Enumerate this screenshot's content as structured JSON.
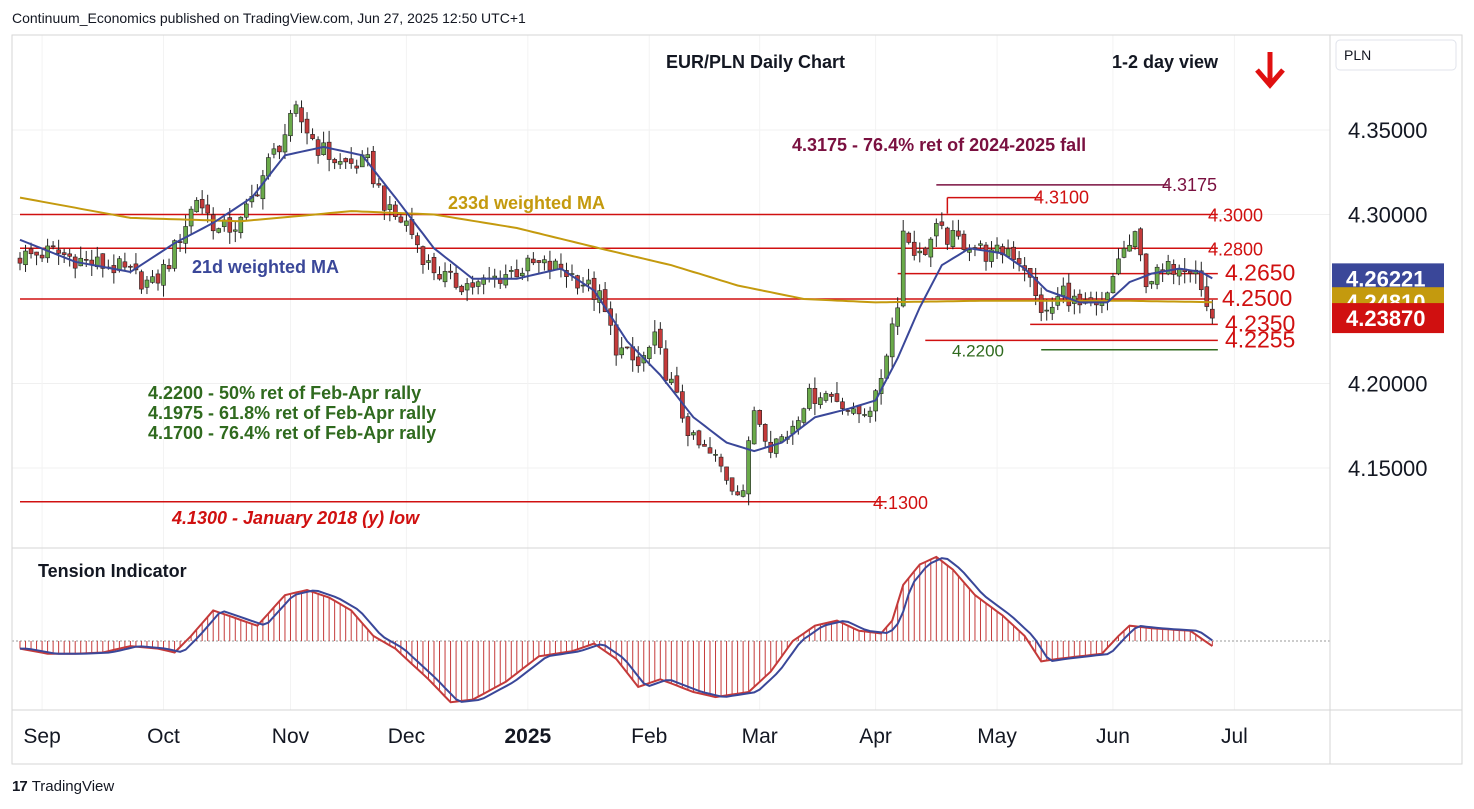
{
  "header": "Continuum_Economics published on TradingView.com, Jun 27, 2025 12:50 UTC+1",
  "brand": "TradingView",
  "currency_label": "PLN",
  "colors": {
    "up": "#6aaa4a",
    "down": "#c43a3a",
    "wma21": "#3a4799",
    "wma233": "#c49a0e",
    "level": "#d01010",
    "green_text": "#2f6a1e",
    "purple": "#7a1040"
  },
  "chart_data": {
    "type": "candlestick",
    "title": "EUR/PLN Daily Chart",
    "view": "1-2 day view",
    "view_direction": "down",
    "ylim": [
      4.105,
      4.395
    ],
    "y_ticks": [
      4.35,
      4.3,
      4.2,
      4.15
    ],
    "y_tick_labels": [
      "4.35000",
      "4.30000",
      "4.20000",
      "4.15000"
    ],
    "x_ticks": [
      {
        "label": "Sep",
        "day": 4
      },
      {
        "label": "Oct",
        "day": 26
      },
      {
        "label": "Nov",
        "day": 49
      },
      {
        "label": "Dec",
        "day": 70
      },
      {
        "label": "2025",
        "day": 92
      },
      {
        "label": "Feb",
        "day": 114
      },
      {
        "label": "Mar",
        "day": 134
      },
      {
        "label": "Apr",
        "day": 155
      },
      {
        "label": "May",
        "day": 177
      },
      {
        "label": "Jun",
        "day": 198
      },
      {
        "label": "Jul",
        "day": 220
      }
    ],
    "price_badges": [
      {
        "label": "4.26221",
        "value": 4.26221,
        "color": "#3a4799"
      },
      {
        "label": "4.24810",
        "value": 4.2481,
        "color": "#c49a0e"
      },
      {
        "label": "4.23870",
        "value": 4.2387,
        "color": "#d01010"
      }
    ],
    "levels": [
      {
        "label": "4.3000",
        "value": 4.3,
        "from_day": 0,
        "to_day": 217
      },
      {
        "label": "4.2800",
        "value": 4.28,
        "from_day": 0,
        "to_day": 217
      },
      {
        "label": "4.2650",
        "value": 4.265,
        "from_day": 159,
        "to_day": 217
      },
      {
        "label": "4.2500",
        "value": 4.25,
        "from_day": 0,
        "to_day": 217
      },
      {
        "label": "4.2350",
        "value": 4.235,
        "from_day": 183,
        "to_day": 217
      },
      {
        "label": "4.2255",
        "value": 4.2255,
        "from_day": 164,
        "to_day": 217
      },
      {
        "label": "4.1300",
        "value": 4.13,
        "from_day": 0,
        "to_day": 157
      }
    ],
    "level_4_3100": {
      "label": "4.3100",
      "value": 4.31,
      "from_day": 168,
      "to_day": 185
    },
    "level_4_3175": {
      "label": "4.3175",
      "value": 4.3175,
      "from_day": 166,
      "to_day": 208
    },
    "level_4_2200": {
      "label": "4.2200",
      "value": 4.22,
      "from_day": 185,
      "to_day": 217
    },
    "annotations": {
      "fib_title": "4.3175 - 76.4% ret of 2024-2025 fall",
      "wma233": "233d weighted MA",
      "wma21": "21d weighted MA",
      "ret1": "4.2200 - 50% ret of Feb-Apr rally",
      "ret2": "4.1975 - 61.8% ret of Feb-Apr rally",
      "ret3": "4.1700 - 76.4% ret of Feb-Apr rally",
      "low_note": "4.1300 - January 2018 (y) low",
      "tension": "Tension Indicator"
    },
    "close_anchors": [
      [
        0,
        4.275
      ],
      [
        6,
        4.278
      ],
      [
        12,
        4.272
      ],
      [
        18,
        4.268
      ],
      [
        24,
        4.258
      ],
      [
        27,
        4.272
      ],
      [
        32,
        4.31
      ],
      [
        36,
        4.29
      ],
      [
        40,
        4.295
      ],
      [
        45,
        4.33
      ],
      [
        50,
        4.36
      ],
      [
        54,
        4.34
      ],
      [
        58,
        4.33
      ],
      [
        63,
        4.33
      ],
      [
        67,
        4.3
      ],
      [
        70,
        4.295
      ],
      [
        74,
        4.27
      ],
      [
        78,
        4.26
      ],
      [
        83,
        4.258
      ],
      [
        88,
        4.265
      ],
      [
        93,
        4.27
      ],
      [
        98,
        4.268
      ],
      [
        102,
        4.26
      ],
      [
        105,
        4.25
      ],
      [
        108,
        4.222
      ],
      [
        112,
        4.21
      ],
      [
        115,
        4.225
      ],
      [
        119,
        4.19
      ],
      [
        122,
        4.165
      ],
      [
        126,
        4.155
      ],
      [
        129,
        4.14
      ],
      [
        131,
        4.138
      ],
      [
        133,
        4.185
      ],
      [
        136,
        4.165
      ],
      [
        139,
        4.17
      ],
      [
        142,
        4.19
      ],
      [
        145,
        4.195
      ],
      [
        149,
        4.19
      ],
      [
        151,
        4.18
      ],
      [
        153,
        4.185
      ],
      [
        155,
        4.19
      ],
      [
        157,
        4.22
      ],
      [
        159,
        4.25
      ],
      [
        160,
        4.29
      ],
      [
        163,
        4.275
      ],
      [
        166,
        4.29
      ],
      [
        169,
        4.285
      ],
      [
        172,
        4.283
      ],
      [
        176,
        4.275
      ],
      [
        179,
        4.28
      ],
      [
        182,
        4.27
      ],
      [
        184,
        4.25
      ],
      [
        186,
        4.24
      ],
      [
        189,
        4.255
      ],
      [
        192,
        4.245
      ],
      [
        195,
        4.243
      ],
      [
        197,
        4.25
      ],
      [
        199,
        4.275
      ],
      [
        202,
        4.285
      ],
      [
        204,
        4.262
      ],
      [
        207,
        4.265
      ],
      [
        210,
        4.272
      ],
      [
        213,
        4.27
      ],
      [
        214,
        4.255
      ],
      [
        215,
        4.245
      ],
      [
        216,
        4.2387
      ]
    ],
    "wma21_anchors": [
      [
        0,
        4.285
      ],
      [
        10,
        4.272
      ],
      [
        20,
        4.266
      ],
      [
        28,
        4.283
      ],
      [
        35,
        4.295
      ],
      [
        42,
        4.31
      ],
      [
        48,
        4.335
      ],
      [
        55,
        4.34
      ],
      [
        62,
        4.335
      ],
      [
        68,
        4.31
      ],
      [
        75,
        4.28
      ],
      [
        82,
        4.262
      ],
      [
        90,
        4.262
      ],
      [
        98,
        4.268
      ],
      [
        104,
        4.255
      ],
      [
        110,
        4.225
      ],
      [
        116,
        4.205
      ],
      [
        122,
        4.18
      ],
      [
        128,
        4.165
      ],
      [
        133,
        4.16
      ],
      [
        138,
        4.165
      ],
      [
        144,
        4.18
      ],
      [
        150,
        4.185
      ],
      [
        155,
        4.19
      ],
      [
        159,
        4.215
      ],
      [
        163,
        4.245
      ],
      [
        167,
        4.27
      ],
      [
        172,
        4.28
      ],
      [
        178,
        4.277
      ],
      [
        182,
        4.268
      ],
      [
        186,
        4.255
      ],
      [
        192,
        4.248
      ],
      [
        197,
        4.248
      ],
      [
        201,
        4.26
      ],
      [
        205,
        4.265
      ],
      [
        210,
        4.268
      ],
      [
        214,
        4.266
      ],
      [
        216,
        4.2622
      ]
    ],
    "wma233_anchors": [
      [
        0,
        4.31
      ],
      [
        20,
        4.298
      ],
      [
        40,
        4.296
      ],
      [
        60,
        4.302
      ],
      [
        75,
        4.3
      ],
      [
        90,
        4.292
      ],
      [
        105,
        4.28
      ],
      [
        118,
        4.27
      ],
      [
        130,
        4.258
      ],
      [
        142,
        4.25
      ],
      [
        155,
        4.248
      ],
      [
        175,
        4.249
      ],
      [
        200,
        4.249
      ],
      [
        216,
        4.2481
      ]
    ],
    "tension_anchors": [
      [
        0,
        -0.3
      ],
      [
        5,
        -0.5
      ],
      [
        10,
        -0.5
      ],
      [
        15,
        -0.45
      ],
      [
        20,
        -0.2
      ],
      [
        25,
        -0.3
      ],
      [
        28,
        -0.45
      ],
      [
        31,
        0.2
      ],
      [
        35,
        1.2
      ],
      [
        39,
        0.9
      ],
      [
        43,
        0.6
      ],
      [
        48,
        1.8
      ],
      [
        52,
        2.0
      ],
      [
        56,
        1.7
      ],
      [
        60,
        1.2
      ],
      [
        64,
        0.2
      ],
      [
        68,
        -0.3
      ],
      [
        74,
        -1.5
      ],
      [
        78,
        -2.4
      ],
      [
        82,
        -2.3
      ],
      [
        88,
        -1.6
      ],
      [
        94,
        -0.6
      ],
      [
        100,
        -0.4
      ],
      [
        104,
        -0.1
      ],
      [
        108,
        -0.7
      ],
      [
        112,
        -1.8
      ],
      [
        116,
        -1.5
      ],
      [
        122,
        -2.0
      ],
      [
        126,
        -2.2
      ],
      [
        132,
        -2.0
      ],
      [
        136,
        -1.2
      ],
      [
        140,
        0.0
      ],
      [
        144,
        0.6
      ],
      [
        148,
        0.8
      ],
      [
        152,
        0.4
      ],
      [
        156,
        0.3
      ],
      [
        158,
        0.8
      ],
      [
        160,
        2.2
      ],
      [
        163,
        3.0
      ],
      [
        166,
        3.3
      ],
      [
        169,
        2.8
      ],
      [
        173,
        1.8
      ],
      [
        178,
        1.0
      ],
      [
        182,
        0.2
      ],
      [
        185,
        -0.8
      ],
      [
        188,
        -0.7
      ],
      [
        192,
        -0.6
      ],
      [
        196,
        -0.5
      ],
      [
        199,
        0.2
      ],
      [
        201,
        0.6
      ],
      [
        205,
        0.5
      ],
      [
        212,
        0.4
      ],
      [
        216,
        -0.2
      ]
    ]
  }
}
